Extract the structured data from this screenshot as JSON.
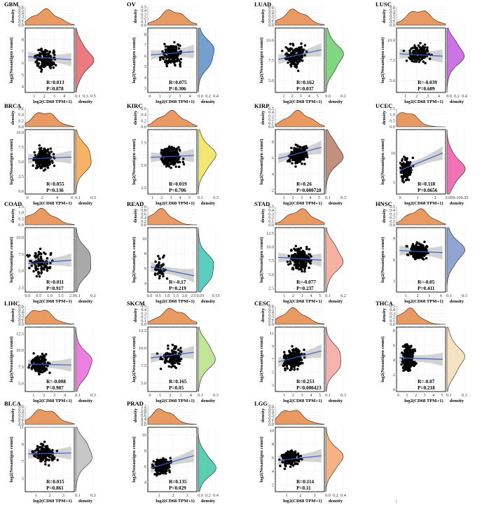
{
  "chart_data": [
    {
      "title": "GBM",
      "type": "scatter",
      "xlabel": "log2(CD68 TPM+1)",
      "ylabel": "log2(Neoantigen count)",
      "top_density_label": "density",
      "right_density_label": "density",
      "top_density_ticks": [
        "0.0",
        "0.1",
        "0.2",
        "0.3",
        "0.4",
        "0.5",
        "0.6"
      ],
      "xticks": [
        "1",
        "2",
        "3",
        "4"
      ],
      "yticks": [
        "4",
        "5",
        "6",
        "7",
        "8"
      ],
      "right_density_ticks": [
        "0.1",
        "0.3",
        "0.5"
      ],
      "xlim": [
        0.1,
        5
      ],
      "ylim": [
        3.5,
        9
      ],
      "fit": {
        "y_start": 6.55,
        "y_end": 6.3
      },
      "n_points": 140,
      "x_center": 2.1,
      "x_spread": 0.9,
      "y_center": 6.3,
      "y_spread": 0.8,
      "R": "R=0.013",
      "P": "P=0.878",
      "fill": "#e8636b"
    },
    {
      "title": "OV",
      "type": "scatter",
      "xlabel": "log2(CD68 TPM+1)",
      "ylabel": "log2(Neoantigen count)",
      "top_density_label": "density",
      "right_density_label": "density",
      "top_density_ticks": [
        "0.0",
        "0.1",
        "0.2",
        "0.3",
        "0.4",
        "0.5"
      ],
      "xticks": [
        "0",
        "1",
        "2",
        "3",
        "4"
      ],
      "yticks": [
        "3",
        "4",
        "5",
        "6",
        "7",
        "8"
      ],
      "right_density_ticks": [
        "0.0",
        "0.2",
        "0.4"
      ],
      "xlim": [
        -0.2,
        4.7
      ],
      "ylim": [
        2.6,
        8.6
      ],
      "fit": {
        "y_start": 6.1,
        "y_end": 6.4
      },
      "n_points": 180,
      "x_center": 2.2,
      "x_spread": 0.8,
      "y_center": 6.2,
      "y_spread": 0.9,
      "R": "R=0.075",
      "P": "P=0.306",
      "fill": "#5d8fc4"
    },
    {
      "title": "LUAD",
      "type": "scatter",
      "xlabel": "log2(CD68 TPM+1)",
      "ylabel": "log2(Neoantigen count)",
      "top_density_label": "density",
      "right_density_label": "density",
      "top_density_ticks": [
        "0.0",
        "0.1",
        "0.2",
        "0.3",
        "0.4",
        "0.5",
        "0.6"
      ],
      "xticks": [
        "1",
        "2",
        "3",
        "4",
        "5"
      ],
      "yticks": [
        "5.0",
        "7.5",
        "10.0"
      ],
      "right_density_ticks": [
        "0.0",
        "0.2"
      ],
      "xlim": [
        0,
        5.8
      ],
      "ylim": [
        3.5,
        11.5
      ],
      "fit": {
        "y_start": 7.6,
        "y_end": 8.8
      },
      "n_points": 170,
      "x_center": 2.3,
      "x_spread": 1.0,
      "y_center": 8.0,
      "y_spread": 1.3,
      "R": "R=0.162",
      "P": "P=0.037",
      "fill": "#6ad06a"
    },
    {
      "title": "LUSC",
      "type": "scatter",
      "xlabel": "log2(CD68 TPM+1)",
      "ylabel": "log2(Neoantigen count)",
      "top_density_label": "density",
      "right_density_label": "density",
      "top_density_ticks": [
        "0.0",
        "0.1",
        "0.2",
        "0.3",
        "0.4",
        "0.5",
        "0.6"
      ],
      "xticks": [
        "1",
        "2",
        "3",
        "4"
      ],
      "yticks": [
        "5.0",
        "7.5",
        "10.0"
      ],
      "right_density_ticks": [
        "0.0",
        "0.2",
        "0.4"
      ],
      "xlim": [
        0.2,
        4.6
      ],
      "ylim": [
        3.5,
        11.5
      ],
      "fit": {
        "y_start": 8.3,
        "y_end": 8.0
      },
      "n_points": 170,
      "x_center": 2.2,
      "x_spread": 0.8,
      "y_center": 8.3,
      "y_spread": 0.9,
      "R": "R=-0.039",
      "P": "P=0.609",
      "fill": "#c35be0"
    },
    {
      "title": "BRCA",
      "type": "scatter",
      "xlabel": "log2(CD68 TPM+1)",
      "ylabel": "log2(Neoantigen count)",
      "top_density_label": "density",
      "right_density_label": "density",
      "top_density_ticks": [
        "0.0",
        "0.2",
        "0.4",
        "0.6"
      ],
      "xticks": [
        "0",
        "2",
        "4",
        "6"
      ],
      "yticks": [
        "0.0",
        "2.5",
        "5.0",
        "7.5",
        "10.0"
      ],
      "right_density_ticks": [
        "0.1",
        "0.3"
      ],
      "xlim": [
        -0.3,
        6.3
      ],
      "ylim": [
        -0.5,
        10.5
      ],
      "fit": {
        "y_start": 5.5,
        "y_end": 5.8
      },
      "n_points": 300,
      "x_center": 2.2,
      "x_spread": 1.0,
      "y_center": 5.6,
      "y_spread": 1.5,
      "R": "R=0.055",
      "P": "P=0.136",
      "fill": "#f5a44a"
    },
    {
      "title": "KIRC",
      "type": "scatter",
      "xlabel": "log2(CD68 TPM+1)",
      "ylabel": "log2(Neoantigen count)",
      "top_density_label": "density",
      "right_density_label": "density",
      "top_density_ticks": [
        "0.0",
        "0.2",
        "0.4",
        "0.6"
      ],
      "xticks": [
        "1",
        "2",
        "3",
        "4",
        "5"
      ],
      "yticks": [
        "2.5",
        "5.0",
        "7.5"
      ],
      "right_density_ticks": [
        "0.1",
        "0.3"
      ],
      "xlim": [
        0.5,
        5.8
      ],
      "ylim": [
        1.8,
        9.0
      ],
      "fit": {
        "y_start": 5.9,
        "y_end": 6.1
      },
      "n_points": 260,
      "x_center": 3.0,
      "x_spread": 0.9,
      "y_center": 6.0,
      "y_spread": 0.9,
      "R": "R=0.019",
      "P": "P=0.706",
      "fill": "#eee35a"
    },
    {
      "title": "KIRP",
      "type": "scatter",
      "xlabel": "log2(CD68 TPM+1)",
      "ylabel": "log2(Neoantigen count)",
      "top_density_label": "density",
      "right_density_label": "density",
      "top_density_ticks": [
        "0.0",
        "0.1",
        "0.2",
        "0.3",
        "0.4",
        "0.5"
      ],
      "xticks": [
        "1",
        "2",
        "3",
        "4",
        "5"
      ],
      "yticks": [
        "2",
        "4",
        "6",
        "8"
      ],
      "right_density_ticks": [
        "0.1",
        "0.3"
      ],
      "xlim": [
        0,
        5.6
      ],
      "ylim": [
        1.5,
        9.5
      ],
      "fit": {
        "y_start": 5.9,
        "y_end": 7.3
      },
      "n_points": 170,
      "x_center": 2.6,
      "x_spread": 1.0,
      "y_center": 6.4,
      "y_spread": 1.0,
      "R": "R=0.26",
      "P": "P=0.000728",
      "fill": "#b87c64"
    },
    {
      "title": "UCEC",
      "type": "scatter",
      "xlabel": "log2(CD68 TPM+1)",
      "ylabel": "log2(Neoantigen count)",
      "top_density_label": "density",
      "right_density_label": "density",
      "top_density_ticks": [
        "0.0",
        "0.5",
        "1.0",
        "1.5"
      ],
      "xticks": [
        "0",
        "1",
        "2"
      ],
      "yticks": [
        "5",
        "10"
      ],
      "right_density_ticks": [
        "0.00",
        "0.10",
        "0.20"
      ],
      "xlim": [
        -0.2,
        2.6
      ],
      "ylim": [
        3.0,
        14.0
      ],
      "fit": {
        "y_start": 7.0,
        "y_end": 10.0
      },
      "n_points": 160,
      "x_center": 0.35,
      "x_spread": 0.3,
      "y_center": 7.2,
      "y_spread": 1.6,
      "R": "R=0.118",
      "P": "P=0.0656",
      "fill": "#ee5aa8"
    },
    {
      "title": "COAD",
      "type": "scatter",
      "xlabel": "log2(CD68 TPM+1)",
      "ylabel": "log2(Neoantigen count)",
      "top_density_label": "density",
      "right_density_label": "density",
      "top_density_ticks": [
        "0.0",
        "0.5",
        "1.0",
        "1.5"
      ],
      "xticks": [
        "0.0",
        "0.5",
        "1.0",
        "1.5",
        "2.0"
      ],
      "yticks": [
        "2.5",
        "5.0",
        "7.5",
        "10.0"
      ],
      "right_density_ticks": [
        "0.1",
        "0.2"
      ],
      "xlim": [
        -0.1,
        2.1
      ],
      "ylim": [
        1.8,
        11.5
      ],
      "fit": {
        "y_start": 6.1,
        "y_end": 6.6
      },
      "n_points": 90,
      "x_center": 0.6,
      "x_spread": 0.45,
      "y_center": 6.3,
      "y_spread": 1.7,
      "R": "R=0.011",
      "P": "P=0.917",
      "fill": "#9a9a9a"
    },
    {
      "title": "READ",
      "type": "scatter",
      "xlabel": "log2(CD68 TPM+1)",
      "ylabel": "log2(Neoantigen count)",
      "top_density_label": "density",
      "right_density_label": "density",
      "top_density_ticks": [
        "0.0",
        "0.2",
        "0.4",
        "0.6",
        "0.8",
        "1.0"
      ],
      "xticks": [
        "0.0",
        "0.5",
        "1.0",
        "1.5",
        "2.0",
        "2.5"
      ],
      "yticks": [
        "4",
        "6",
        "8",
        "10"
      ],
      "right_density_ticks": [
        "0.05",
        "0.15"
      ],
      "xlim": [
        -0.1,
        2.7
      ],
      "ylim": [
        2.8,
        11.5
      ],
      "fit": {
        "y_start": 6.2,
        "y_end": 5.0
      },
      "n_points": 45,
      "x_center": 0.6,
      "x_spread": 0.35,
      "y_center": 6.0,
      "y_spread": 1.3,
      "R": "R=-0.17",
      "P": "P=0.219",
      "fill": "#3ec6b6"
    },
    {
      "title": "STAD",
      "type": "scatter",
      "xlabel": "log2(CD68 TPM+1)",
      "ylabel": "log2(Neoantigen count)",
      "top_density_label": "density",
      "right_density_label": "density",
      "top_density_ticks": [
        "0.0",
        "0.1",
        "0.2",
        "0.3",
        "0.4",
        "0.5"
      ],
      "xticks": [
        "1",
        "2",
        "3",
        "4",
        "5"
      ],
      "yticks": [
        "2.5",
        "5.0",
        "7.5",
        "10.0",
        "12.5"
      ],
      "right_density_ticks": [
        "0.1",
        "0.2"
      ],
      "xlim": [
        0,
        5.5
      ],
      "ylim": [
        1.8,
        13.5
      ],
      "fit": {
        "y_start": 8.1,
        "y_end": 7.6
      },
      "n_points": 260,
      "x_center": 2.8,
      "x_spread": 1.0,
      "y_center": 7.8,
      "y_spread": 1.8,
      "R": "R=-0.077",
      "P": "P=0.237",
      "fill": "#f4a58f"
    },
    {
      "title": "HNSC",
      "type": "scatter",
      "xlabel": "log2(CD68 TPM+1)",
      "ylabel": "log2(Neoantigen count)",
      "top_density_label": "density",
      "right_density_label": "density",
      "top_density_ticks": [
        "0.0",
        "0.1",
        "0.2",
        "0.3",
        "0.4",
        "0.5"
      ],
      "xticks": [
        "1",
        "2",
        "3",
        "4"
      ],
      "yticks": [
        "3",
        "6",
        "9"
      ],
      "right_density_ticks": [
        "0.1",
        "0.3"
      ],
      "xlim": [
        0.2,
        4.4
      ],
      "ylim": [
        1.5,
        10.5
      ],
      "fit": {
        "y_start": 7.3,
        "y_end": 7.0
      },
      "n_points": 240,
      "x_center": 2.1,
      "x_spread": 0.7,
      "y_center": 7.2,
      "y_spread": 1.0,
      "R": "R=-0.05",
      "P": "P=0.411",
      "fill": "#7d95cc"
    },
    {
      "title": "LIHC",
      "type": "scatter",
      "xlabel": "log2(CD68 TPM+1)",
      "ylabel": "log2(Neoantigen count)",
      "top_density_label": "density",
      "right_density_label": "density",
      "top_density_ticks": [
        "0.0",
        "0.1",
        "0.2",
        "0.3",
        "0.4",
        "0.5",
        "0.6"
      ],
      "xticks": [
        "1",
        "2",
        "3",
        "4"
      ],
      "yticks": [
        "5.0",
        "7.5",
        "10.0",
        "12.5"
      ],
      "right_density_ticks": [
        "0.1",
        "0.3"
      ],
      "xlim": [
        0.2,
        4.9
      ],
      "ylim": [
        3.8,
        13.5
      ],
      "fit": {
        "y_start": 7.9,
        "y_end": 7.8
      },
      "n_points": 160,
      "x_center": 1.6,
      "x_spread": 0.8,
      "y_center": 7.9,
      "y_spread": 1.3,
      "R": "R=-0.008",
      "P": "P=0.907",
      "fill": "#e86ad8"
    },
    {
      "title": "SKCM",
      "type": "scatter",
      "xlabel": "log2(CD68 TPM+1)",
      "ylabel": "log2(Neoantigen count)",
      "top_density_label": "density",
      "right_density_label": "density",
      "top_density_ticks": [
        "0.0",
        "0.1",
        "0.2",
        "0.3",
        "0.4",
        "0.5"
      ],
      "xticks": [
        "0",
        "1",
        "2",
        "3",
        "4"
      ],
      "yticks": [
        "5.0",
        "7.5",
        "10.0",
        "12.5"
      ],
      "right_density_ticks": [
        "0.1",
        "0.3"
      ],
      "xlim": [
        -0.2,
        4.6
      ],
      "ylim": [
        3.8,
        13.0
      ],
      "fit": {
        "y_start": 8.6,
        "y_end": 9.4
      },
      "n_points": 110,
      "x_center": 2.2,
      "x_spread": 1.0,
      "y_center": 8.8,
      "y_spread": 1.3,
      "R": "R=0.165",
      "P": "P=0.05",
      "fill": "#b9e088"
    },
    {
      "title": "CESC",
      "type": "scatter",
      "xlabel": "log2(CD68 TPM+1)",
      "ylabel": "log2(Neoantigen count)",
      "top_density_label": "density",
      "right_density_label": "density",
      "top_density_ticks": [
        "0.0",
        "0.1",
        "0.2",
        "0.3",
        "0.4",
        "0.5",
        "0.6"
      ],
      "xticks": [
        "1",
        "2",
        "3",
        "4",
        "5"
      ],
      "yticks": [
        "3",
        "5",
        "7",
        "9",
        "11"
      ],
      "right_density_ticks": [
        "0.1",
        "0.3"
      ],
      "xlim": [
        0,
        5.5
      ],
      "ylim": [
        2.0,
        12.0
      ],
      "fit": {
        "y_start": 6.6,
        "y_end": 8.3
      },
      "n_points": 220,
      "x_center": 2.0,
      "x_spread": 0.9,
      "y_center": 7.0,
      "y_spread": 1.4,
      "R": "R=0.253",
      "P": "P=0.000423",
      "fill": "#f5a59f"
    },
    {
      "title": "THCA",
      "type": "scatter",
      "xlabel": "log2(CD68 TPM+1)",
      "ylabel": "log2(Neoantigen count)",
      "top_density_label": "density",
      "right_density_label": "density",
      "top_density_ticks": [
        "0.0",
        "0.1",
        "0.2",
        "0.3",
        "0.4",
        "0.5"
      ],
      "xticks": [
        "0",
        "1",
        "2",
        "3",
        "4",
        "5"
      ],
      "yticks": [
        "0",
        "2",
        "4",
        "6",
        "8"
      ],
      "right_density_ticks": [
        "0.1",
        "0.3"
      ],
      "xlim": [
        -0.2,
        5.4
      ],
      "ylim": [
        -0.3,
        8.5
      ],
      "fit": {
        "y_start": 4.3,
        "y_end": 4.1
      },
      "n_points": 300,
      "x_center": 1.2,
      "x_spread": 0.6,
      "y_center": 4.2,
      "y_spread": 1.5,
      "R": "R=-0.07",
      "P": "P=0.218",
      "fill": "#f4dcb6"
    },
    {
      "title": "BLCA",
      "type": "scatter",
      "xlabel": "log2(CD68 TPM+1)",
      "ylabel": "log2(Neoantigen count)",
      "top_density_label": "density",
      "right_density_label": "density",
      "top_density_ticks": [
        "0.0",
        "0.1",
        "0.2",
        "0.3",
        "0.4",
        "0.5",
        "0.6"
      ],
      "xticks": [
        "1",
        "2",
        "3"
      ],
      "yticks": [
        "5",
        "7",
        "9",
        "11"
      ],
      "right_density_ticks": [
        "0.1",
        "0.3"
      ],
      "xlim": [
        0.2,
        3.8
      ],
      "ylim": [
        3.5,
        11.0
      ],
      "fit": {
        "y_start": 7.9,
        "y_end": 8.0
      },
      "n_points": 150,
      "x_center": 1.6,
      "x_spread": 0.7,
      "y_center": 7.9,
      "y_spread": 1.0,
      "R": "R=0.015",
      "P": "P=0.861",
      "fill": "#bdbdbd"
    },
    {
      "title": "PRAD",
      "type": "scatter",
      "xlabel": "log2(CD68 TPM+1)",
      "ylabel": "log2(Neoantigen count)",
      "top_density_label": "density",
      "right_density_label": "density",
      "top_density_ticks": [
        "0.0",
        "0.2",
        "0.4",
        "0.6",
        "0.8",
        "1.0",
        "1.2"
      ],
      "xticks": [
        "1",
        "2",
        "3"
      ],
      "yticks": [
        "4",
        "6",
        "8",
        "10"
      ],
      "right_density_ticks": [
        "0.0",
        "0.2",
        "0.4"
      ],
      "xlim": [
        0.2,
        3.7
      ],
      "ylim": [
        2.8,
        11.0
      ],
      "fit": {
        "y_start": 5.8,
        "y_end": 7.4
      },
      "n_points": 200,
      "x_center": 1.2,
      "x_spread": 0.5,
      "y_center": 6.0,
      "y_spread": 0.8,
      "R": "R=0.135",
      "P": "P=0.029",
      "fill": "#3ec6a6"
    },
    {
      "title": "LGG",
      "type": "scatter",
      "xlabel": "log2(CD68 TPM+1)",
      "ylabel": "log2(Neoantigen count)",
      "top_density_label": "density",
      "right_density_label": "density",
      "top_density_ticks": [
        "0.0",
        "0.1",
        "0.2",
        "0.3",
        "0.4",
        "0.5",
        "0.6"
      ],
      "xticks": [
        "1",
        "2",
        "3"
      ],
      "yticks": [
        "2",
        "4",
        "6",
        "8",
        "10"
      ],
      "right_density_ticks": [
        "0.0",
        "0.2",
        "0.4"
      ],
      "xlim": [
        0.2,
        3.7
      ],
      "ylim": [
        1.0,
        10.5
      ],
      "fit": {
        "y_start": 5.6,
        "y_end": 6.3
      },
      "n_points": 170,
      "x_center": 1.3,
      "x_spread": 0.6,
      "y_center": 5.9,
      "y_spread": 1.0,
      "R": "R=0.114",
      "P": "P=0.11",
      "fill": "#f4a56e"
    }
  ],
  "footer_mark": "i"
}
